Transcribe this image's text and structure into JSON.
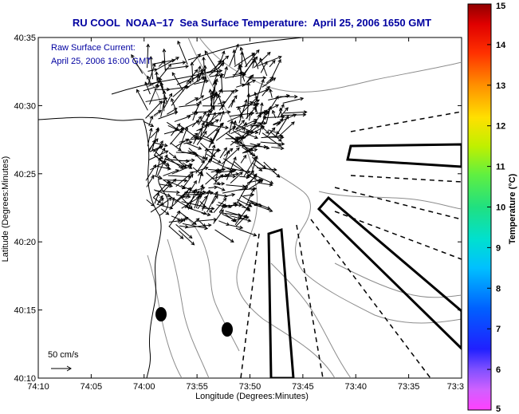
{
  "chart_data": {
    "type": "map",
    "title": "RU COOL  NOAA−17  Sea Surface Temperature:  April 25, 2006 1650 GMT",
    "xlabel": "Longitude (Degrees:Minutes)",
    "ylabel": "Latitude (Degrees:Minutes)",
    "x_ticks": [
      "74:10",
      "74:05",
      "74:00",
      "73:55",
      "73:50",
      "73:45",
      "73:40",
      "73:35",
      "73:3"
    ],
    "y_ticks": [
      "40:35",
      "40:30",
      "40:25",
      "40:20",
      "40:15",
      "40:10"
    ],
    "xlim": [
      -74.1667,
      -73.5
    ],
    "ylim": [
      40.1667,
      40.5833
    ],
    "legend": {
      "line1": "Raw Surface Current:",
      "line2": "April 25, 2006 16:00 GMT"
    },
    "scale_label": "50 cm/s",
    "colorbar": {
      "label": "Temperature (°C)",
      "min": 5,
      "max": 15,
      "ticks": [
        "5",
        "6",
        "7",
        "8",
        "9",
        "10",
        "11",
        "12",
        "13",
        "14",
        "15"
      ]
    },
    "grid": false
  },
  "colors": {
    "title": "#0000a0",
    "legend": "#0000a0",
    "coastline": "#000000",
    "bathymetry": "#8c8c8c",
    "vectors": "#000000",
    "shipping_lanes": "#000000"
  }
}
